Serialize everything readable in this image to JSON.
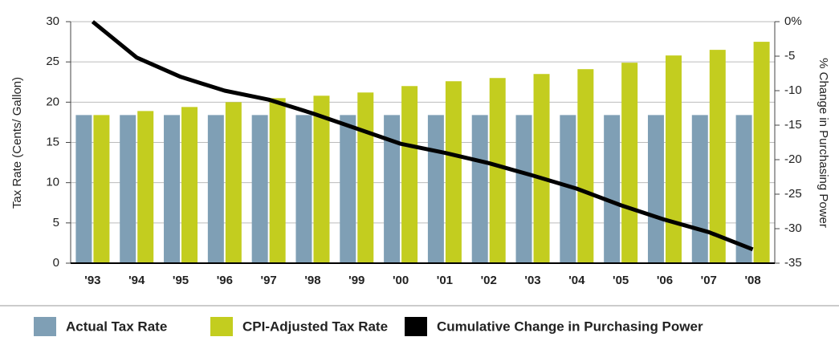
{
  "chart_data": {
    "type": "bar",
    "categories": [
      "'93",
      "'94",
      "'95",
      "'96",
      "'97",
      "'98",
      "'99",
      "'00",
      "'01",
      "'02",
      "'03",
      "'04",
      "'05",
      "'06",
      "'07",
      "'08"
    ],
    "series": [
      {
        "name": "Actual Tax Rate",
        "color": "#7f9fb5",
        "type": "bar",
        "values": [
          18.4,
          18.4,
          18.4,
          18.4,
          18.4,
          18.4,
          18.4,
          18.4,
          18.4,
          18.4,
          18.4,
          18.4,
          18.4,
          18.4,
          18.4,
          18.4
        ]
      },
      {
        "name": "CPI-Adjusted Tax Rate",
        "color": "#c3cd1f",
        "type": "bar",
        "values": [
          18.4,
          18.9,
          19.4,
          20.0,
          20.5,
          20.8,
          21.2,
          22.0,
          22.6,
          23.0,
          23.5,
          24.1,
          24.9,
          25.8,
          26.5,
          27.5
        ]
      },
      {
        "name": "Cumulative Change in Purchasing Power",
        "color": "#000000",
        "type": "line",
        "axis": "y2",
        "values": [
          0,
          -5.2,
          -8.0,
          -10.0,
          -11.3,
          -13.3,
          -15.5,
          -17.7,
          -19.0,
          -20.5,
          -22.3,
          -24.2,
          -26.6,
          -28.7,
          -30.5,
          -33.0
        ]
      }
    ],
    "y_label": "Tax Rate (Cents/ Gallon)",
    "y2_label": "% Change in Purchasing Power",
    "ylim": [
      0,
      30
    ],
    "yticks": [
      0,
      5,
      10,
      15,
      20,
      25,
      30
    ],
    "y2lim": [
      -35,
      0
    ],
    "y2ticks": [
      {
        "value": 0,
        "label": "0%"
      },
      -5,
      -10,
      -15,
      -20,
      -25,
      -30,
      -35
    ],
    "grid": true,
    "legend": "bottom"
  }
}
